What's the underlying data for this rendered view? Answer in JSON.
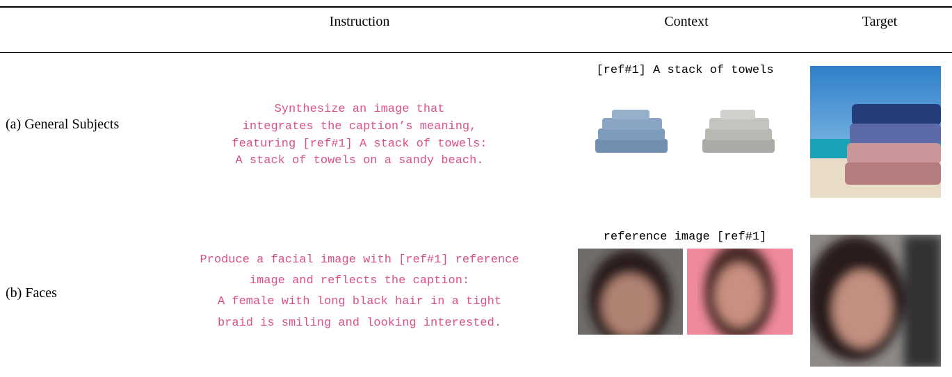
{
  "header": {
    "columns": [
      "Instruction",
      "Context",
      "Target"
    ]
  },
  "rows": [
    {
      "label": "(a) General Subjects",
      "instruction": [
        "Synthesize an image that",
        "integrates the caption’s meaning,",
        "featuring [ref#1] A stack of towels:",
        "A stack of towels on a sandy beach."
      ],
      "context_caption": "[ref#1] A stack of towels"
    },
    {
      "label": "(b) Faces",
      "instruction": [
        "Produce a facial image with [ref#1] reference",
        "image and reflects the caption:",
        "A female with long black hair in a tight",
        "braid is smiling and looking interested."
      ],
      "context_caption": "reference image [ref#1]"
    }
  ]
}
